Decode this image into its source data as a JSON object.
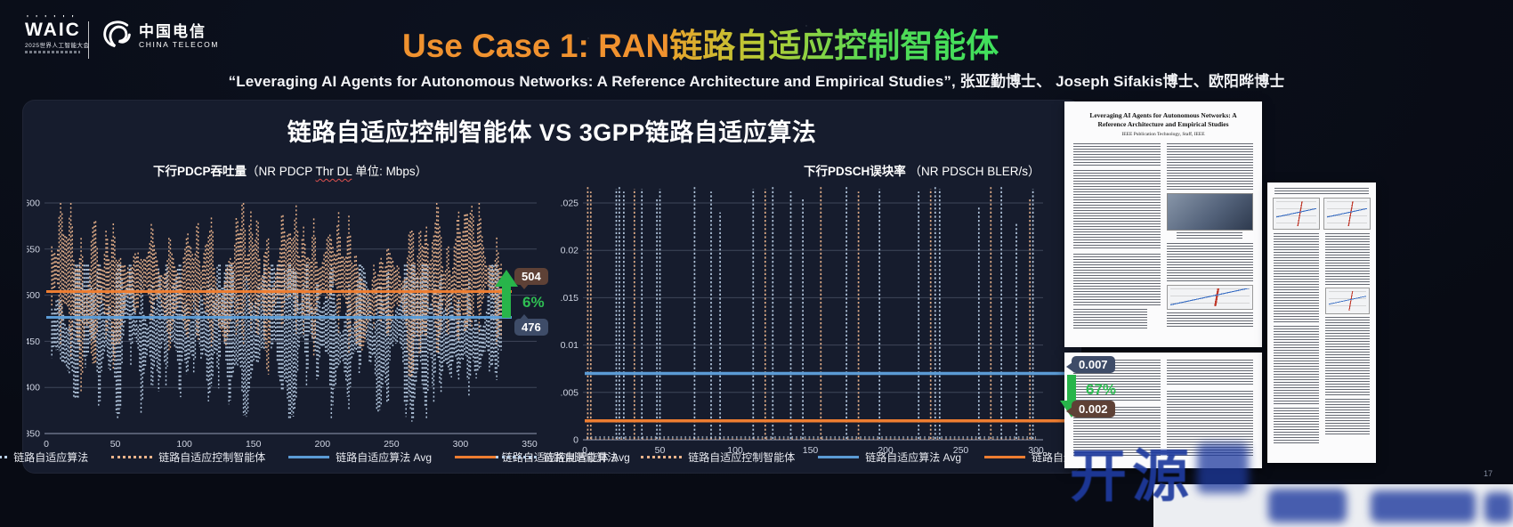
{
  "header": {
    "waic": {
      "name": "WAIC",
      "tagline": "2025世界人工智能大会"
    },
    "china_telecom": {
      "cn": "中国电信",
      "en": "CHINA TELECOM"
    },
    "title_orange": "Use Case 1: RAN",
    "title_green": "链路自适应控制智能体",
    "subtitle": "“Leveraging AI Agents for Autonomous Networks: A Reference Architecture and Empirical Studies”, 张亚勤博士、 Joseph Sifakis博士、欧阳晔博士"
  },
  "panel": {
    "title": "链路自适应控制智能体 VS 3GPP链路自适应算法"
  },
  "chart_data": [
    {
      "id": "dl-pdcp-throughput",
      "type": "line",
      "title_zh": "下行PDCP吞吐量",
      "title_en_pre": "（NR PDCP ",
      "title_en_mis": "Thr DL",
      "title_en_post": " 单位: Mbps）",
      "xlim": [
        0,
        350
      ],
      "ylim": [
        350,
        600
      ],
      "x_ticks": [
        "0",
        "50",
        "100",
        "150",
        "200",
        "250",
        "300",
        "350"
      ],
      "y_ticks": [
        "350",
        "400",
        "450",
        "500",
        "550",
        "600"
      ],
      "grid": "horizontal",
      "legend_position": "bottom",
      "series": [
        {
          "name": "链路自适应算法",
          "type": "dotted-noise",
          "color": "#b9cfe6",
          "mean": 476,
          "min": 356,
          "max": 533,
          "x_end": 330
        },
        {
          "name": "链路自适应控制智能体",
          "type": "dotted-noise",
          "color": "#eab38b",
          "mean": 504,
          "min": 386,
          "max": 600,
          "x_end": 330
        },
        {
          "name": "链路自适应算法 Avg",
          "type": "avg-line",
          "color": "#5b9bd5",
          "value": 476
        },
        {
          "name": "链路自适应控制智能体 Avg",
          "type": "avg-line",
          "color": "#ed7d31",
          "value": 504
        }
      ],
      "annotation": {
        "agent_avg": "504",
        "baseline_avg": "476",
        "delta": "6%",
        "direction": "up"
      }
    },
    {
      "id": "dl-pdsch-bler",
      "type": "line",
      "title_zh": "下行PDSCH误块率",
      "title_en": "（NR PDSCH BLER/s）",
      "xlim": [
        0,
        300
      ],
      "ylim": [
        0,
        0.025
      ],
      "x_ticks": [
        "0",
        "50",
        "100",
        "150",
        "200",
        "250",
        "300"
      ],
      "y_ticks": [
        "0",
        "0.005",
        "0.01",
        "0.015",
        "0.02",
        "0.025"
      ],
      "grid": "horizontal",
      "legend_position": "bottom",
      "series": [
        {
          "name": "链路自适应算法",
          "type": "spikes",
          "color": "#b9cfe6",
          "baseline": 0,
          "spikes": [
            [
              21,
              0.0265
            ],
            [
              23,
              0.0268
            ],
            [
              26,
              0.0262
            ],
            [
              38,
              0.0265
            ],
            [
              48,
              0.0255
            ],
            [
              50,
              0.0265
            ],
            [
              73,
              0.0268
            ],
            [
              84,
              0.0262
            ],
            [
              90,
              0.024
            ],
            [
              112,
              0.0265
            ],
            [
              125,
              0.0268
            ],
            [
              137,
              0.0262
            ],
            [
              145,
              0.0255
            ],
            [
              174,
              0.0268
            ],
            [
              196,
              0.0265
            ],
            [
              222,
              0.0262
            ],
            [
              233,
              0.0268
            ],
            [
              236,
              0.0265
            ],
            [
              262,
              0.0245
            ],
            [
              277,
              0.0268
            ],
            [
              287,
              0.023
            ],
            [
              298,
              0.0265
            ]
          ]
        },
        {
          "name": "链路自适应控制智能体",
          "type": "spikes",
          "color": "#eab38b",
          "baseline": 0,
          "spikes": [
            [
              2,
              0.0268
            ],
            [
              4,
              0.0262
            ],
            [
              33,
              0.0265
            ],
            [
              120,
              0.0265
            ],
            [
              157,
              0.0268
            ],
            [
              182,
              0.0262
            ],
            [
              230,
              0.0265
            ],
            [
              270,
              0.0268
            ],
            [
              296,
              0.0255
            ]
          ]
        },
        {
          "name": "链路自适应算法 Avg",
          "type": "avg-line",
          "color": "#5b9bd5",
          "value": 0.007
        },
        {
          "name": "链路自适应控制智能体 Avg",
          "type": "avg-line",
          "color": "#ed7d31",
          "value": 0.002
        }
      ],
      "annotation": {
        "baseline_avg": "0.007",
        "agent_avg": "0.002",
        "delta": "67%",
        "direction": "down"
      }
    }
  ],
  "legend": {
    "items": [
      {
        "label": "链路自适应算法",
        "swatch": "dotted",
        "color": "#b9cfe6"
      },
      {
        "label": "链路自适应控制智能体",
        "swatch": "dotted",
        "color": "#eab38b"
      },
      {
        "label": "链路自适应算法 Avg",
        "swatch": "solid",
        "color": "#5b9bd5"
      },
      {
        "label": "链路自适应控制智能体 Avg",
        "swatch": "solid",
        "color": "#ed7d31"
      }
    ]
  },
  "paper": {
    "title": "Leveraging AI Agents for Autonomous Networks: A Reference Architecture and Empirical Studies",
    "byline": "IEEE Publication Technology, Staff, IEEE"
  },
  "watermark": "开源",
  "page_number": "17",
  "colors": {
    "background": "#0a0e19",
    "panel": "#161c2d",
    "accent_orange": "#f0922f",
    "accent_green": "#43d854",
    "avg_blue": "#5b9bd5",
    "avg_orange": "#ed7d31",
    "dots_blue": "#b9cfe6",
    "dots_orange": "#eab38b",
    "badge_brown": "#5e4136",
    "badge_slate": "#3e4c68",
    "improve_green": "#2db14b",
    "watermark_blue": "#1e3a9e"
  }
}
